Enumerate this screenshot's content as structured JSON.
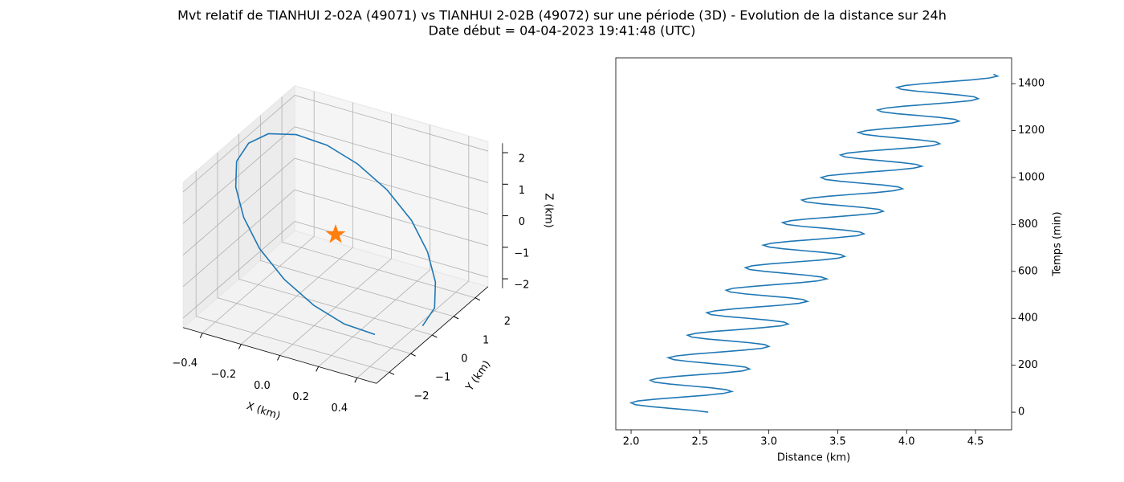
{
  "title": "Mvt relatif de TIANHUI 2-02A (49071) vs TIANHUI 2-02B (49072) sur une période (3D) - Evolution de la distance sur 24h",
  "subtitle": "Date début = 04-04-2023 19:41:48 (UTC)",
  "chart_data": [
    {
      "type": "line3d",
      "xlabel": "X (km)",
      "ylabel": "Y (km)",
      "zlabel": "Z (km)",
      "xlim": [
        -0.5,
        0.5
      ],
      "ylim": [
        -2.6,
        2.6
      ],
      "zlim": [
        -2.3,
        2.3
      ],
      "xticks": [
        {
          "value": -0.4,
          "label": "−0.4"
        },
        {
          "value": -0.2,
          "label": "−0.2"
        },
        {
          "value": 0,
          "label": "0.0"
        },
        0.2,
        0.4
      ],
      "yticks": [
        {
          "value": -2,
          "label": "−2"
        },
        {
          "value": -1,
          "label": "−1"
        },
        0,
        1,
        2
      ],
      "zticks": [
        {
          "value": -2,
          "label": "−2"
        },
        {
          "value": -1,
          "label": "−1"
        },
        0,
        1,
        2
      ],
      "grid": true,
      "series": [
        {
          "color": "#1f77b4",
          "x": [
            0.45,
            0.43,
            0.36,
            0.26,
            0.14,
            0,
            -0.14,
            -0.26,
            -0.36,
            -0.43,
            -0.45,
            -0.43,
            -0.36,
            -0.26,
            -0.14,
            0,
            0.14,
            0.26,
            0.36
          ],
          "y": [
            0,
            0.74,
            1.41,
            1.94,
            2.28,
            2.4,
            2.28,
            1.94,
            1.41,
            0.74,
            0,
            -0.74,
            -1.41,
            -1.94,
            -2.28,
            -2.4,
            -2.28,
            -1.94,
            -1.41
          ],
          "z": [
            -2.1,
            -2,
            -1.7,
            -1.23,
            -0.65,
            0,
            0.65,
            1.23,
            1.7,
            2,
            2.1,
            2,
            1.7,
            1.23,
            0.65,
            0,
            -0.65,
            -1.23,
            -1.7
          ]
        },
        {
          "color": "#ff7f0e",
          "marker": "star",
          "x": [
            0
          ],
          "y": [
            0
          ],
          "z": [
            0
          ]
        }
      ]
    },
    {
      "type": "line",
      "xlabel": "Distance (km)",
      "ylabel": "Temps (min)",
      "yaxis_side": "right",
      "xlim": [
        1.889,
        4.762
      ],
      "ylim": [
        -75,
        1510
      ],
      "xticks": [
        {
          "value": 2,
          "label": "2.0"
        },
        2.5,
        {
          "value": 3,
          "label": "3.0"
        },
        3.5,
        {
          "value": 4,
          "label": "4.0"
        },
        4.5
      ],
      "yticks": [
        0,
        200,
        400,
        600,
        800,
        1000,
        1200,
        1400
      ],
      "series": [
        {
          "color": "#1f77b4",
          "x": [
            2.56,
            2.45,
            2.29,
            2.14,
            2.03,
            2.0,
            2.05,
            2.19,
            2.36,
            2.54,
            2.67,
            2.73,
            2.69,
            2.58,
            2.43,
            2.28,
            2.17,
            2.14,
            2.19,
            2.32,
            2.5,
            2.68,
            2.81,
            2.86,
            2.83,
            2.72,
            2.57,
            2.42,
            2.31,
            2.27,
            2.33,
            2.46,
            2.64,
            2.81,
            2.95,
            3.0,
            2.97,
            2.86,
            2.71,
            2.55,
            2.44,
            2.41,
            2.47,
            2.6,
            2.78,
            2.95,
            3.09,
            3.14,
            3.11,
            3.0,
            2.85,
            2.69,
            2.58,
            2.55,
            2.61,
            2.74,
            2.91,
            3.09,
            3.22,
            3.28,
            3.25,
            3.14,
            2.98,
            2.83,
            2.72,
            2.69,
            2.74,
            2.88,
            3.05,
            3.23,
            3.36,
            3.42,
            3.38,
            3.27,
            3.12,
            2.97,
            2.86,
            2.83,
            2.88,
            3.01,
            3.19,
            3.37,
            3.5,
            3.55,
            3.52,
            3.41,
            3.26,
            3.11,
            3.0,
            2.96,
            3.02,
            3.15,
            3.33,
            3.5,
            3.64,
            3.69,
            3.66,
            3.55,
            3.4,
            3.24,
            3.13,
            3.1,
            3.16,
            3.29,
            3.47,
            3.64,
            3.78,
            3.83,
            3.8,
            3.69,
            3.54,
            3.38,
            3.27,
            3.24,
            3.3,
            3.43,
            3.6,
            3.78,
            3.91,
            3.97,
            3.94,
            3.83,
            3.67,
            3.52,
            3.41,
            3.38,
            3.43,
            3.57,
            3.74,
            3.92,
            4.05,
            4.11,
            4.07,
            3.96,
            3.81,
            3.66,
            3.55,
            3.52,
            3.57,
            3.7,
            3.88,
            4.06,
            4.19,
            4.24,
            4.21,
            4.1,
            3.95,
            3.8,
            3.69,
            3.65,
            3.71,
            3.84,
            4.02,
            4.19,
            4.33,
            4.38,
            4.35,
            4.24,
            4.09,
            3.93,
            3.82,
            3.79,
            3.85,
            3.98,
            4.16,
            4.33,
            4.47,
            4.52,
            4.49,
            4.38,
            4.23,
            4.07,
            3.96,
            3.93,
            3.99,
            4.12,
            4.29,
            4.47,
            4.6,
            4.66,
            4.63
          ],
          "y": [
            0,
            8,
            16,
            24,
            32,
            40,
            48,
            56,
            64,
            72,
            80,
            88,
            96,
            104,
            112,
            120,
            128,
            136,
            144,
            152,
            160,
            168,
            176,
            184,
            192,
            200,
            208,
            216,
            224,
            232,
            240,
            248,
            256,
            264,
            272,
            280,
            288,
            296,
            304,
            312,
            320,
            328,
            336,
            344,
            352,
            360,
            368,
            376,
            384,
            392,
            400,
            408,
            416,
            424,
            432,
            440,
            448,
            456,
            464,
            472,
            480,
            488,
            496,
            504,
            512,
            520,
            528,
            536,
            544,
            552,
            560,
            568,
            576,
            584,
            592,
            600,
            608,
            616,
            624,
            632,
            640,
            648,
            656,
            664,
            672,
            680,
            688,
            696,
            704,
            712,
            720,
            728,
            736,
            744,
            752,
            760,
            768,
            776,
            784,
            792,
            800,
            808,
            816,
            824,
            832,
            840,
            848,
            856,
            864,
            872,
            880,
            888,
            896,
            904,
            912,
            920,
            928,
            936,
            944,
            952,
            960,
            968,
            976,
            984,
            992,
            1000,
            1008,
            1016,
            1024,
            1032,
            1040,
            1048,
            1056,
            1064,
            1072,
            1080,
            1088,
            1096,
            1104,
            1112,
            1120,
            1128,
            1136,
            1144,
            1152,
            1160,
            1168,
            1176,
            1184,
            1192,
            1200,
            1208,
            1216,
            1224,
            1232,
            1240,
            1248,
            1256,
            1264,
            1272,
            1280,
            1288,
            1296,
            1304,
            1312,
            1320,
            1328,
            1336,
            1344,
            1352,
            1360,
            1368,
            1376,
            1384,
            1392,
            1400,
            1408,
            1416,
            1424,
            1432,
            1440
          ]
        }
      ]
    }
  ]
}
